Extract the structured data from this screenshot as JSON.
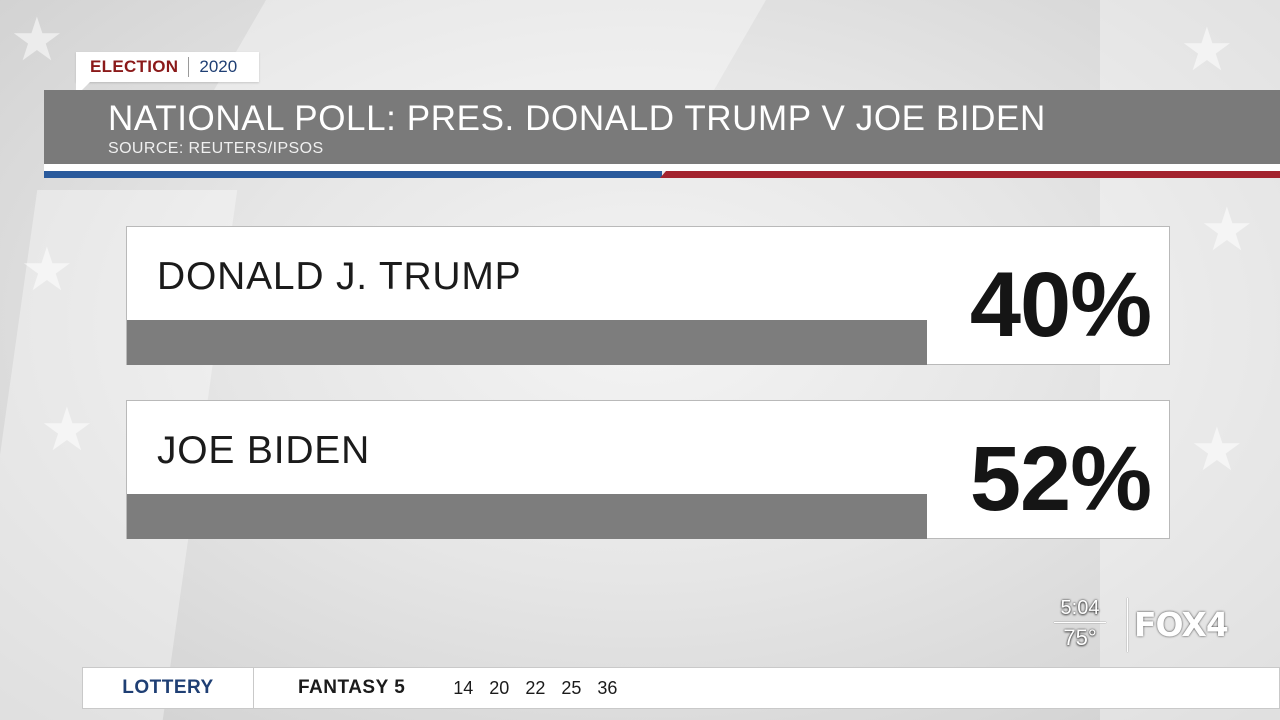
{
  "tag": {
    "election": "ELECTION",
    "year": "2020"
  },
  "header": {
    "title": "NATIONAL POLL: PRES. DONALD TRUMP V JOE BIDEN",
    "source": "SOURCE: REUTERS/IPSOS"
  },
  "candidates": [
    {
      "name": "DONALD J. TRUMP",
      "percent_label": "40%",
      "percent": 40
    },
    {
      "name": "JOE BIDEN",
      "percent_label": "52%",
      "percent": 52
    }
  ],
  "bug": {
    "time": "5:04",
    "temp": "75°",
    "logo": "FOX4"
  },
  "ticker": {
    "label": "LOTTERY",
    "game": "FANTASY 5",
    "numbers": [
      "14",
      "20",
      "22",
      "25",
      "36"
    ]
  },
  "colors": {
    "stripe_blue": "#2a5a9c",
    "stripe_red": "#a3232e",
    "header_bg": "#7a7a7a",
    "tag_red": "#8b1a1a",
    "tag_blue": "#1f3f74"
  }
}
